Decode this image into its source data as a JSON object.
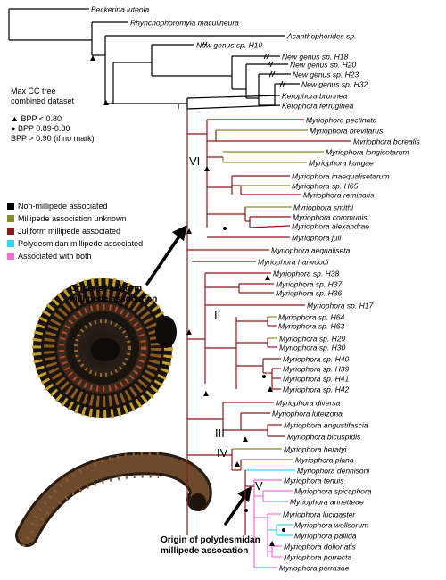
{
  "info": {
    "title_line1": "Max CC tree",
    "title_line2": "combined dataset",
    "support_low": "BPP < 0.80",
    "support_mid": "BPP 0.89-0.80",
    "support_high": "BPP > 0.90 (if no mark)"
  },
  "legend": [
    {
      "label": "Non-millipede associated",
      "color": "#000000"
    },
    {
      "label": "Millipede association unknown",
      "color": "#8b8b2e"
    },
    {
      "label": "Juliform millipede associated",
      "color": "#8b1a1a"
    },
    {
      "label": "Polydesmidan millipede associated",
      "color": "#33d6ee"
    },
    {
      "label": "Associated with both",
      "color": "#ef6fd2"
    }
  ],
  "clades": {
    "c6": "VI",
    "c2": "II",
    "c3": "III",
    "c4": "IV",
    "c5": "V"
  },
  "origins": {
    "juliform_line1": "Origin of juliform",
    "juliform_line2": "millipede assocation",
    "polydesmidan_line1": "Origin of polydesmidan",
    "polydesmidan_line2": "millipede assocation"
  },
  "taxa": [
    {
      "genus": "Beckerina",
      "species": "luteola",
      "color": "#000000"
    },
    {
      "genus": "Rhynchophoromyia",
      "species": "maculineura",
      "color": "#000000"
    },
    {
      "genus": "Acanthophorides",
      "species": "sp.",
      "color": "#000000"
    },
    {
      "genus": "New genus",
      "species": "sp. H10",
      "color": "#000000"
    },
    {
      "genus": "New genus",
      "species": "sp. H18",
      "color": "#000000"
    },
    {
      "genus": "New genus",
      "species": "sp. H20",
      "color": "#000000"
    },
    {
      "genus": "New genus",
      "species": "sp. H23",
      "color": "#000000"
    },
    {
      "genus": "New genus",
      "species": "sp. H32",
      "color": "#000000"
    },
    {
      "genus": "Kerophora",
      "species": "brunnea",
      "color": "#000000"
    },
    {
      "genus": "Kerophora",
      "species": "ferruginea",
      "color": "#000000"
    },
    {
      "genus": "Myriophora",
      "species": "pectinata",
      "color": "#8b1a1a"
    },
    {
      "genus": "Myriophora",
      "species": "brevitarus",
      "color": "#8b8b2e"
    },
    {
      "genus": "Myriophora",
      "species": "borealis",
      "color": "#8b1a1a"
    },
    {
      "genus": "Myriophora",
      "species": "longisetarum",
      "color": "#8b8b2e"
    },
    {
      "genus": "Myriophora",
      "species": "kungae",
      "color": "#8b8b2e"
    },
    {
      "genus": "Myriophora",
      "species": "inaequalisetarum",
      "color": "#8b1a1a"
    },
    {
      "genus": "Myriophora",
      "species": "sp. H65",
      "color": "#8b8b2e"
    },
    {
      "genus": "Myriophora",
      "species": "reminatis",
      "color": "#8b1a1a"
    },
    {
      "genus": "Myriophora",
      "species": "smithi",
      "color": "#8b8b2e"
    },
    {
      "genus": "Myriophora",
      "species": "communis",
      "color": "#8b1a1a"
    },
    {
      "genus": "Myriophora",
      "species": "alexandrae",
      "color": "#8b1a1a"
    },
    {
      "genus": "Myriophora",
      "species": "juli",
      "color": "#8b1a1a"
    },
    {
      "genus": "Myriophora",
      "species": "aequaliseta",
      "color": "#8b1a1a"
    },
    {
      "genus": "Myriophora",
      "species": "harwoodi",
      "color": "#8b1a1a"
    },
    {
      "genus": "Myriophora",
      "species": "sp. H38",
      "color": "#8b1a1a"
    },
    {
      "genus": "Myriophora",
      "species": "sp. H37",
      "color": "#8b1a1a"
    },
    {
      "genus": "Myriophora",
      "species": "sp. H36",
      "color": "#8b1a1a"
    },
    {
      "genus": "Myriophora",
      "species": "sp. H17",
      "color": "#8b1a1a"
    },
    {
      "genus": "Myriophora",
      "species": "sp. H64",
      "color": "#8b8b2e"
    },
    {
      "genus": "Myriophora",
      "species": "sp. H63",
      "color": "#8b1a1a"
    },
    {
      "genus": "Myriophora",
      "species": "sp. H29",
      "color": "#8b8b2e"
    },
    {
      "genus": "Myriophora",
      "species": "sp. H30",
      "color": "#8b1a1a"
    },
    {
      "genus": "Myriophora",
      "species": "sp. H40",
      "color": "#8b1a1a"
    },
    {
      "genus": "Myriophora",
      "species": "sp. H39",
      "color": "#8b1a1a"
    },
    {
      "genus": "Myriophora",
      "species": "sp. H41",
      "color": "#8b1a1a"
    },
    {
      "genus": "Myriophora",
      "species": "sp. H42",
      "color": "#8b1a1a"
    },
    {
      "genus": "Myriophora",
      "species": "diversa",
      "color": "#8b1a1a"
    },
    {
      "genus": "Myriophora",
      "species": "luteizona",
      "color": "#8b1a1a"
    },
    {
      "genus": "Myriophora",
      "species": "angustifascia",
      "color": "#8b1a1a"
    },
    {
      "genus": "Myriophora",
      "species": "bicuspidis",
      "color": "#8b1a1a"
    },
    {
      "genus": "Myriophora",
      "species": "heratyi",
      "color": "#8b8b2e"
    },
    {
      "genus": "Myriophora",
      "species": "plana",
      "color": "#8b8b2e"
    },
    {
      "genus": "Myriophora",
      "species": "dennisoni",
      "color": "#33d6ee"
    },
    {
      "genus": "Myriophora",
      "species": "tenuis",
      "color": "#ef6fd2"
    },
    {
      "genus": "Myriophora",
      "species": "spicaphora",
      "color": "#ef6fd2"
    },
    {
      "genus": "Myriophora",
      "species": "annetteae",
      "color": "#ef6fd2"
    },
    {
      "genus": "Myriophora",
      "species": "lucigaster",
      "color": "#ef6fd2"
    },
    {
      "genus": "Myriophora",
      "species": "wellsorum",
      "color": "#33d6ee"
    },
    {
      "genus": "Myriophora",
      "species": "pallida",
      "color": "#33d6ee"
    },
    {
      "genus": "Myriophora",
      "species": "dolionatis",
      "color": "#ef6fd2"
    },
    {
      "genus": "Myriophora",
      "species": "porrecta",
      "color": "#ef6fd2"
    },
    {
      "genus": "Myriophora",
      "species": "porrasae",
      "color": "#ef6fd2"
    }
  ]
}
